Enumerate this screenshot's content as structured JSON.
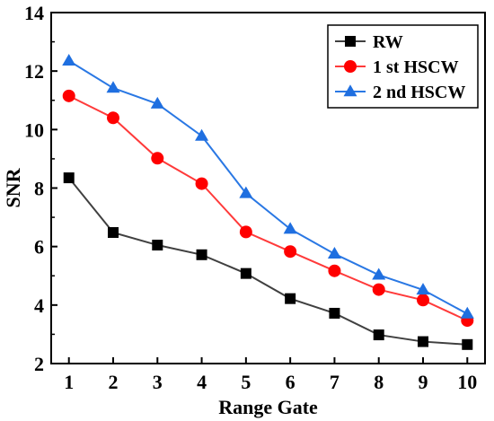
{
  "chart_data": {
    "type": "line",
    "xlabel": "Range Gate",
    "ylabel": "SNR",
    "xlim": [
      0.6,
      10.4
    ],
    "ylim": [
      2,
      14
    ],
    "xticks": [
      "1",
      "2",
      "3",
      "4",
      "5",
      "6",
      "7",
      "8",
      "9",
      "10"
    ],
    "yticks": [
      "2",
      "4",
      "6",
      "8",
      "10",
      "12",
      "14"
    ],
    "x": [
      1,
      2,
      3,
      4,
      5,
      6,
      7,
      8,
      9,
      10
    ],
    "legend_position": "top-right",
    "grid": false,
    "series": [
      {
        "name": "RW",
        "marker": "square",
        "line_color": "#404040",
        "marker_color": "#000000",
        "values": [
          8.35,
          6.48,
          6.05,
          5.72,
          5.08,
          4.22,
          3.72,
          2.98,
          2.75,
          2.65
        ]
      },
      {
        "name": "1 st HSCW",
        "marker": "circle",
        "line_color": "#ff3a3a",
        "marker_color": "#ff0000",
        "values": [
          11.15,
          10.4,
          9.02,
          8.15,
          6.5,
          5.83,
          5.17,
          4.53,
          4.17,
          3.47
        ]
      },
      {
        "name": "2 nd HSCW",
        "marker": "triangle",
        "line_color": "#2a78e4",
        "marker_color": "#1f6fe0",
        "values": [
          12.35,
          11.42,
          10.88,
          9.78,
          7.82,
          6.6,
          5.75,
          5.03,
          4.52,
          3.7
        ]
      }
    ]
  }
}
